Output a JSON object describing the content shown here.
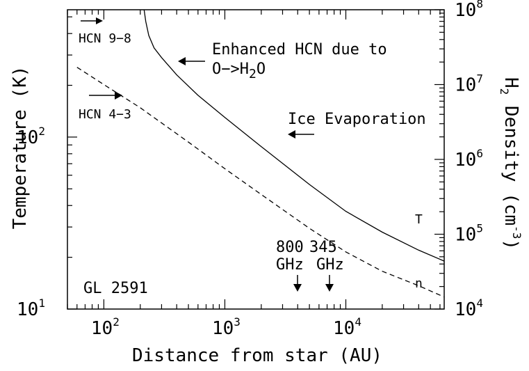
{
  "chart_data": {
    "type": "line",
    "x_scale": "log",
    "y_scale": "log",
    "y2_scale": "log",
    "xlim": [
      50,
      65000
    ],
    "ylim": [
      10,
      550
    ],
    "y2lim": [
      10000,
      100000000
    ],
    "xlabel": "Distance from star (AU)",
    "ylabel": "Temperature (K)",
    "y2label": {
      "prefix": "H",
      "sub": "2",
      "mid": " Density (cm",
      "sup": "-3",
      "suffix": ")"
    },
    "x_ticks": [
      {
        "value": 100,
        "base": "10",
        "exp": "2"
      },
      {
        "value": 1000,
        "base": "10",
        "exp": "3"
      },
      {
        "value": 10000,
        "base": "10",
        "exp": "4"
      }
    ],
    "y_ticks": [
      {
        "value": 10,
        "base": "10",
        "exp": "1"
      },
      {
        "value": 100,
        "base": "10",
        "exp": "2"
      }
    ],
    "y2_ticks": [
      {
        "value": 10000,
        "base": "10",
        "exp": "4"
      },
      {
        "value": 100000,
        "base": "10",
        "exp": "5"
      },
      {
        "value": 1000000,
        "base": "10",
        "exp": "6"
      },
      {
        "value": 10000000,
        "base": "10",
        "exp": "7"
      },
      {
        "value": 100000000,
        "base": "10",
        "exp": "8"
      }
    ],
    "series": [
      {
        "name": "T",
        "axis": "left",
        "style": "solid",
        "x": [
          215,
          222,
          235,
          260,
          300,
          400,
          600,
          1000,
          2000,
          5000,
          10000,
          20000,
          40000,
          65000
        ],
        "y": [
          550,
          470,
          390,
          330,
          290,
          230,
          175,
          130,
          88,
          53,
          37,
          28,
          22,
          19
        ]
      },
      {
        "name": "n",
        "axis": "right",
        "style": "dashed",
        "x": [
          60,
          100,
          200,
          500,
          1000,
          2000,
          5000,
          10000,
          20000,
          40000,
          65000
        ],
        "y": [
          17000000,
          10000000,
          4900000,
          1700000,
          750000,
          340000,
          120000,
          58000,
          32000,
          20500,
          14500
        ]
      }
    ],
    "labels": {
      "temperature_curve": "T",
      "density_curve": "n",
      "source": "GL 2591",
      "hcn98": "HCN 9−8",
      "hcn43": "HCN 4−3",
      "enhanced_line1": "Enhanced HCN due to",
      "enhanced_line2": {
        "prefix": "O−>H",
        "sub": "2",
        "suffix": "O"
      },
      "ice": "Ice Evaporation",
      "freq800": "800",
      "freq345": "345",
      "ghz1": "GHz",
      "ghz2": "GHz"
    },
    "beam_markers": [
      {
        "label": "800 GHz",
        "x": 3700
      },
      {
        "label": "345 GHz",
        "x": 6900
      }
    ]
  }
}
